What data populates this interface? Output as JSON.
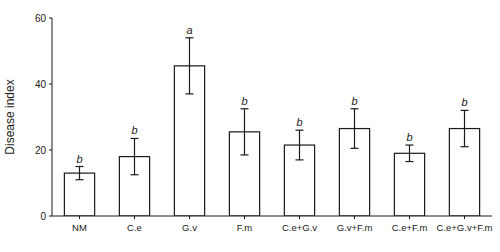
{
  "chart_data": {
    "type": "bar",
    "categories": [
      "NM",
      "C.e",
      "G.v",
      "F.m",
      "C.e+G.v",
      "G.v+F.m",
      "C.e+F.m",
      "C.e+G.v+F.m"
    ],
    "values": [
      13.0,
      18.0,
      45.5,
      25.5,
      21.5,
      26.5,
      19.0,
      26.5
    ],
    "errors": [
      2.0,
      5.5,
      8.5,
      7.0,
      4.5,
      6.0,
      2.5,
      5.5
    ],
    "annotations": [
      "b",
      "b",
      "a",
      "b",
      "b",
      "b",
      "b",
      "b"
    ],
    "ylabel": "Disease index",
    "color": "#ffffff",
    "ylim": [
      0,
      60
    ],
    "yticks": [
      0,
      20,
      40,
      60
    ],
    "grid": false
  }
}
